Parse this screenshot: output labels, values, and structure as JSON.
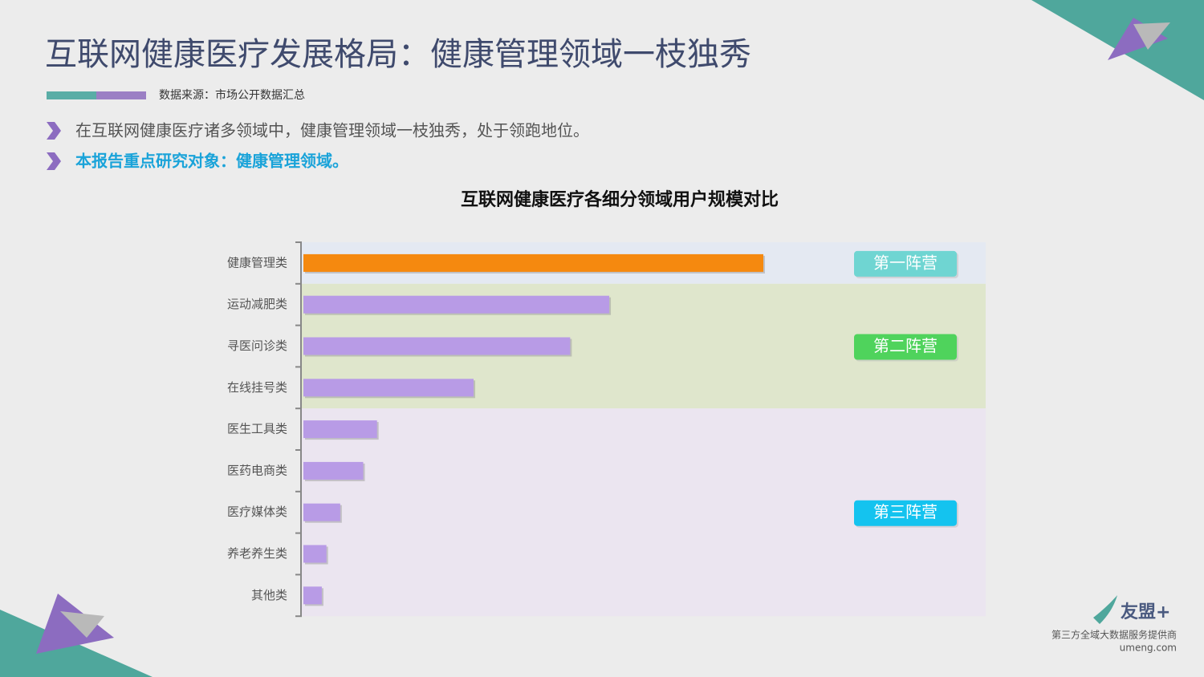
{
  "header": {
    "title": "互联网健康医疗发展格局：健康管理领域一枝独秀",
    "source": "数据来源：市场公开数据汇总"
  },
  "bullets": [
    "在互联网健康医疗诸多领域中，健康管理领域一枝独秀，处于领跑地位。",
    "本报告重点研究对象：健康管理领域。"
  ],
  "chart_data": {
    "type": "bar",
    "title": "互联网健康医疗各细分领域用户规模对比",
    "groups": [
      {
        "label": "第一阵营",
        "color": "#f5890f",
        "badge_color": "#6fd5d2",
        "band_color": "#e4e9f2",
        "categories": [
          "健康管理类"
        ],
        "values": [
          100
        ]
      },
      {
        "label": "第二阵营",
        "color": "#b89be6",
        "badge_color": "#4fd35c",
        "band_color": "#dfe6cc",
        "categories": [
          "运动减肥类",
          "寻医问诊类",
          "在线挂号类"
        ],
        "values": [
          66.5,
          58,
          37
        ]
      },
      {
        "label": "第三阵营",
        "color": "#b89be6",
        "badge_color": "#14c3ef",
        "band_color": "#ebe5f0",
        "categories": [
          "医生工具类",
          "医药电商类",
          "医疗媒体类",
          "养老养生类",
          "其他类"
        ],
        "values": [
          16,
          13,
          8,
          5,
          4
        ]
      }
    ]
  },
  "footer": {
    "brand": "友盟+",
    "tagline": "第三方全域大数据服务提供商",
    "url": "umeng.com"
  }
}
